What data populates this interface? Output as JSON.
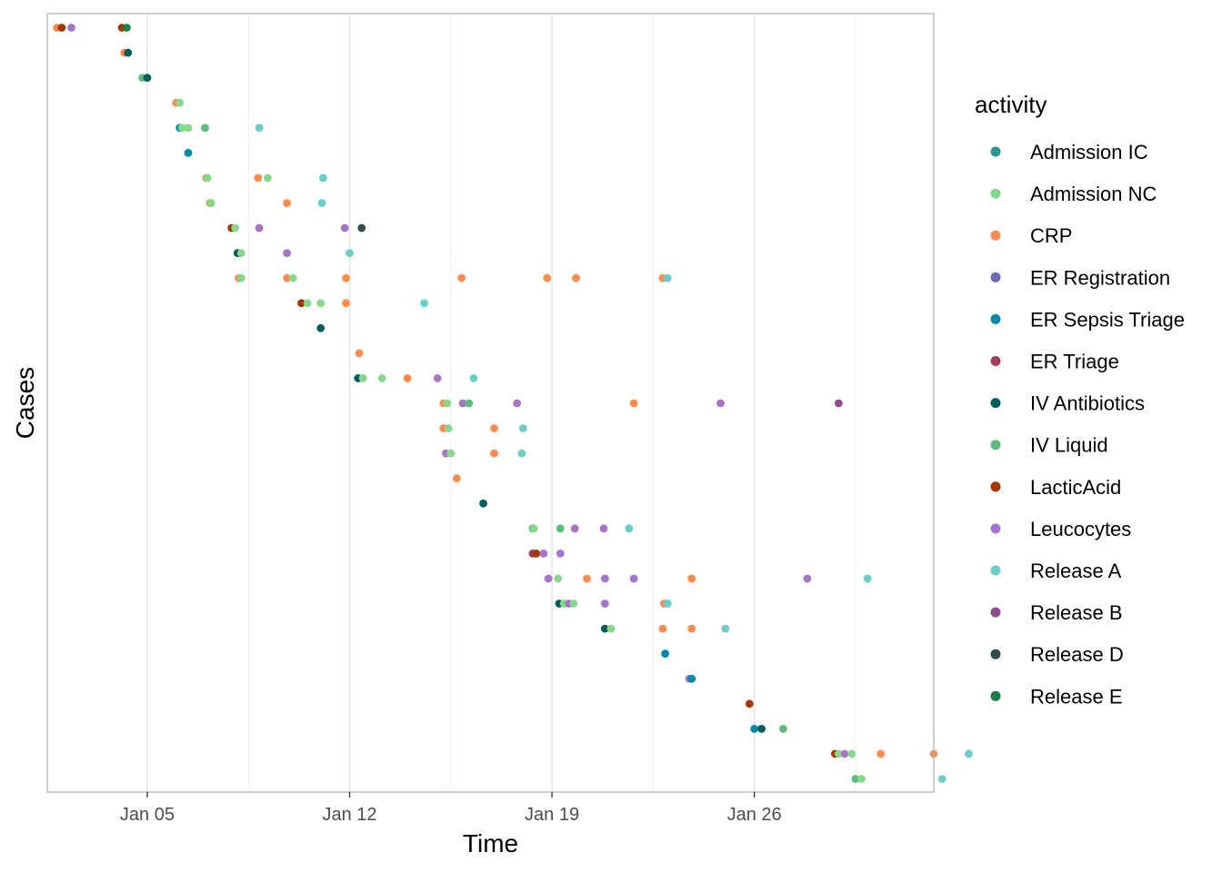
{
  "chart_data": {
    "type": "scatter",
    "title": "",
    "xlabel": "Time",
    "ylabel": "Cases",
    "x_ticks": [
      "Jan 05",
      "Jan 12",
      "Jan 19",
      "Jan 26"
    ],
    "x_tick_values": [
      "2024-01-05",
      "2024-01-12",
      "2024-01-19",
      "2024-01-26"
    ],
    "xlim": [
      "2024-01-01T13:00",
      "2024-02-01T05:00"
    ],
    "grid": true,
    "legend_title": "activity",
    "legend_position": "right",
    "series": [
      {
        "name": "Admission IC",
        "color": "#2A9490"
      },
      {
        "name": "Admission NC",
        "color": "#86D98A"
      },
      {
        "name": "CRP",
        "color": "#FF8A4C"
      },
      {
        "name": "ER Registration",
        "color": "#6E6BB4"
      },
      {
        "name": "ER Sepsis Triage",
        "color": "#008CA9"
      },
      {
        "name": "ER Triage",
        "color": "#A33D5F"
      },
      {
        "name": "IV Antibiotics",
        "color": "#005F5C"
      },
      {
        "name": "IV Liquid",
        "color": "#5BBD7A"
      },
      {
        "name": "LacticAcid",
        "color": "#A63600"
      },
      {
        "name": "Leucocytes",
        "color": "#A873CB"
      },
      {
        "name": "Release A",
        "color": "#68CECB"
      },
      {
        "name": "Release B",
        "color": "#8D4D8E"
      },
      {
        "name": "Release D",
        "color": "#2F4F4F"
      },
      {
        "name": "Release E",
        "color": "#1B8048"
      }
    ],
    "cases": [
      {
        "case": 1,
        "events": [
          [
            "2024-01-01T21:00",
            "CRP"
          ],
          [
            "2024-01-02T01:00",
            "LacticAcid"
          ],
          [
            "2024-01-02T09:00",
            "Leucocytes"
          ],
          [
            "2024-01-04T03:00",
            "LacticAcid"
          ],
          [
            "2024-01-04T07:00",
            "Release E"
          ]
        ]
      },
      {
        "case": 2,
        "events": [
          [
            "2024-01-04T05:00",
            "CRP"
          ],
          [
            "2024-01-04T08:00",
            "IV Antibiotics"
          ]
        ]
      },
      {
        "case": 3,
        "events": [
          [
            "2024-01-04T20:00",
            "IV Liquid"
          ],
          [
            "2024-01-05T00:00",
            "IV Antibiotics"
          ]
        ]
      },
      {
        "case": 4,
        "events": [
          [
            "2024-01-06T00:00",
            "CRP"
          ],
          [
            "2024-01-06T03:00",
            "Admission NC"
          ]
        ]
      },
      {
        "case": 5,
        "events": [
          [
            "2024-01-06T03:00",
            "ER Sepsis Triage"
          ],
          [
            "2024-01-06T05:00",
            "Admission NC"
          ],
          [
            "2024-01-06T10:00",
            "Admission NC"
          ],
          [
            "2024-01-07T00:00",
            "IV Liquid"
          ],
          [
            "2024-01-08T21:00",
            "Release A"
          ]
        ]
      },
      {
        "case": 6,
        "events": [
          [
            "2024-01-06T10:00",
            "ER Sepsis Triage"
          ]
        ]
      },
      {
        "case": 7,
        "events": [
          [
            "2024-01-07T01:00",
            "CRP"
          ],
          [
            "2024-01-07T02:00",
            "Admission NC"
          ],
          [
            "2024-01-08T20:00",
            "CRP"
          ],
          [
            "2024-01-09T04:00",
            "Admission NC"
          ],
          [
            "2024-01-11T02:00",
            "Release A"
          ]
        ]
      },
      {
        "case": 8,
        "events": [
          [
            "2024-01-07T04:00",
            "CRP"
          ],
          [
            "2024-01-07T05:00",
            "Admission NC"
          ],
          [
            "2024-01-09T20:00",
            "CRP"
          ],
          [
            "2024-01-11T01:00",
            "Release A"
          ]
        ]
      },
      {
        "case": 9,
        "events": [
          [
            "2024-01-07T22:00",
            "LacticAcid"
          ],
          [
            "2024-01-08T01:00",
            "Admission NC"
          ],
          [
            "2024-01-08T21:00",
            "Leucocytes"
          ],
          [
            "2024-01-11T20:00",
            "Leucocytes"
          ],
          [
            "2024-01-12T10:00",
            "Release D"
          ]
        ]
      },
      {
        "case": 10,
        "events": [
          [
            "2024-01-08T03:00",
            "IV Antibiotics"
          ],
          [
            "2024-01-08T06:00",
            "Admission NC"
          ],
          [
            "2024-01-09T20:00",
            "Leucocytes"
          ],
          [
            "2024-01-12T00:00",
            "Release A"
          ]
        ]
      },
      {
        "case": 11,
        "events": [
          [
            "2024-01-08T04:00",
            "CRP"
          ],
          [
            "2024-01-08T06:00",
            "Admission NC"
          ],
          [
            "2024-01-09T20:00",
            "CRP"
          ],
          [
            "2024-01-10T01:00",
            "Admission NC"
          ],
          [
            "2024-01-11T21:00",
            "CRP"
          ],
          [
            "2024-01-15T21:00",
            "CRP"
          ],
          [
            "2024-01-18T20:00",
            "CRP"
          ],
          [
            "2024-01-19T20:00",
            "CRP"
          ],
          [
            "2024-01-22T20:00",
            "CRP"
          ],
          [
            "2024-01-23T00:00",
            "Release A"
          ]
        ]
      },
      {
        "case": 12,
        "events": [
          [
            "2024-01-10T08:00",
            "LacticAcid"
          ],
          [
            "2024-01-10T13:00",
            "Admission NC"
          ],
          [
            "2024-01-11T00:00",
            "Admission NC"
          ],
          [
            "2024-01-11T21:00",
            "CRP"
          ],
          [
            "2024-01-14T14:00",
            "Release A"
          ]
        ]
      },
      {
        "case": 13,
        "events": [
          [
            "2024-01-11T00:00",
            "IV Antibiotics"
          ]
        ]
      },
      {
        "case": 14,
        "events": [
          [
            "2024-01-12T08:00",
            "CRP"
          ]
        ]
      },
      {
        "case": 15,
        "events": [
          [
            "2024-01-12T07:00",
            "IV Antibiotics"
          ],
          [
            "2024-01-12T11:00",
            "Admission NC"
          ],
          [
            "2024-01-13T03:00",
            "Admission NC"
          ],
          [
            "2024-01-14T00:00",
            "CRP"
          ],
          [
            "2024-01-15T01:00",
            "Leucocytes"
          ],
          [
            "2024-01-16T07:00",
            "Release A"
          ]
        ]
      },
      {
        "case": 16,
        "events": [
          [
            "2024-01-15T06:00",
            "CRP"
          ],
          [
            "2024-01-15T09:00",
            "Admission NC"
          ],
          [
            "2024-01-15T22:00",
            "Leucocytes"
          ],
          [
            "2024-01-16T03:00",
            "IV Liquid"
          ],
          [
            "2024-01-17T19:00",
            "Leucocytes"
          ],
          [
            "2024-01-21T20:00",
            "CRP"
          ],
          [
            "2024-01-24T20:00",
            "Leucocytes"
          ],
          [
            "2024-01-28T22:00",
            "Release B"
          ]
        ]
      },
      {
        "case": 17,
        "events": [
          [
            "2024-01-15T06:00",
            "CRP"
          ],
          [
            "2024-01-15T10:00",
            "Admission NC"
          ],
          [
            "2024-01-17T00:00",
            "CRP"
          ],
          [
            "2024-01-18T00:00",
            "Release A"
          ]
        ]
      },
      {
        "case": 18,
        "events": [
          [
            "2024-01-15T08:00",
            "Leucocytes"
          ],
          [
            "2024-01-15T12:00",
            "Admission NC"
          ],
          [
            "2024-01-17T00:00",
            "CRP"
          ],
          [
            "2024-01-17T23:00",
            "Release A"
          ]
        ]
      },
      {
        "case": 19,
        "events": [
          [
            "2024-01-15T17:00",
            "CRP"
          ]
        ]
      },
      {
        "case": 20,
        "events": [
          [
            "2024-01-16T15:00",
            "IV Antibiotics"
          ]
        ]
      },
      {
        "case": 21,
        "events": [
          [
            "2024-01-18T08:00",
            "IV Liquid"
          ],
          [
            "2024-01-18T09:00",
            "Admission NC"
          ],
          [
            "2024-01-19T07:00",
            "IV Liquid"
          ],
          [
            "2024-01-19T19:00",
            "Leucocytes"
          ],
          [
            "2024-01-20T19:00",
            "Leucocytes"
          ],
          [
            "2024-01-21T16:00",
            "Release A"
          ]
        ]
      },
      {
        "case": 22,
        "events": [
          [
            "2024-01-18T08:00",
            "ER Triage"
          ],
          [
            "2024-01-18T11:00",
            "LacticAcid"
          ],
          [
            "2024-01-18T17:00",
            "Leucocytes"
          ],
          [
            "2024-01-19T07:00",
            "Leucocytes"
          ]
        ]
      },
      {
        "case": 23,
        "events": [
          [
            "2024-01-18T21:00",
            "Leucocytes"
          ],
          [
            "2024-01-19T05:00",
            "Admission NC"
          ],
          [
            "2024-01-20T05:00",
            "CRP"
          ],
          [
            "2024-01-20T20:00",
            "Leucocytes"
          ],
          [
            "2024-01-21T20:00",
            "Leucocytes"
          ],
          [
            "2024-01-23T20:00",
            "CRP"
          ],
          [
            "2024-01-27T20:00",
            "Leucocytes"
          ],
          [
            "2024-01-29T22:00",
            "Release A"
          ]
        ]
      },
      {
        "case": 24,
        "events": [
          [
            "2024-01-19T06:00",
            "IV Antibiotics"
          ],
          [
            "2024-01-19T10:00",
            "Admission NC"
          ],
          [
            "2024-01-19T14:00",
            "Leucocytes"
          ],
          [
            "2024-01-19T18:00",
            "Admission NC"
          ],
          [
            "2024-01-20T20:00",
            "Leucocytes"
          ],
          [
            "2024-01-22T21:00",
            "CRP"
          ],
          [
            "2024-01-23T00:00",
            "Release A"
          ]
        ]
      },
      {
        "case": 25,
        "events": [
          [
            "2024-01-20T20:00",
            "IV Antibiotics"
          ],
          [
            "2024-01-21T01:00",
            "Admission NC"
          ],
          [
            "2024-01-22T20:00",
            "CRP"
          ],
          [
            "2024-01-23T20:00",
            "CRP"
          ],
          [
            "2024-01-25T00:00",
            "Release A"
          ]
        ]
      },
      {
        "case": 26,
        "events": [
          [
            "2024-01-22T22:00",
            "ER Sepsis Triage"
          ]
        ]
      },
      {
        "case": 27,
        "events": [
          [
            "2024-01-23T18:00",
            "Leucocytes"
          ],
          [
            "2024-01-23T20:00",
            "ER Sepsis Triage"
          ]
        ]
      },
      {
        "case": 28,
        "events": [
          [
            "2024-01-25T20:00",
            "LacticAcid"
          ]
        ]
      },
      {
        "case": 29,
        "events": [
          [
            "2024-01-26T00:00",
            "ER Sepsis Triage"
          ],
          [
            "2024-01-26T06:00",
            "IV Antibiotics"
          ],
          [
            "2024-01-27T00:00",
            "IV Liquid"
          ]
        ]
      },
      {
        "case": 30,
        "events": [
          [
            "2024-01-28T19:00",
            "LacticAcid"
          ],
          [
            "2024-01-28T22:00",
            "Admission NC"
          ],
          [
            "2024-01-29T03:00",
            "Leucocytes"
          ],
          [
            "2024-01-29T09:00",
            "Admission NC"
          ],
          [
            "2024-01-30T09:00",
            "CRP"
          ],
          [
            "2024-02-01T05:00",
            "CRP"
          ],
          [
            "2024-02-02T10:00",
            "Release A"
          ]
        ]
      },
      {
        "case": 31,
        "events": [
          [
            "2024-01-29T12:00",
            "IV Liquid"
          ],
          [
            "2024-01-29T17:00",
            "Admission NC"
          ],
          [
            "2024-02-01T12:00",
            "Release A"
          ]
        ]
      }
    ]
  }
}
